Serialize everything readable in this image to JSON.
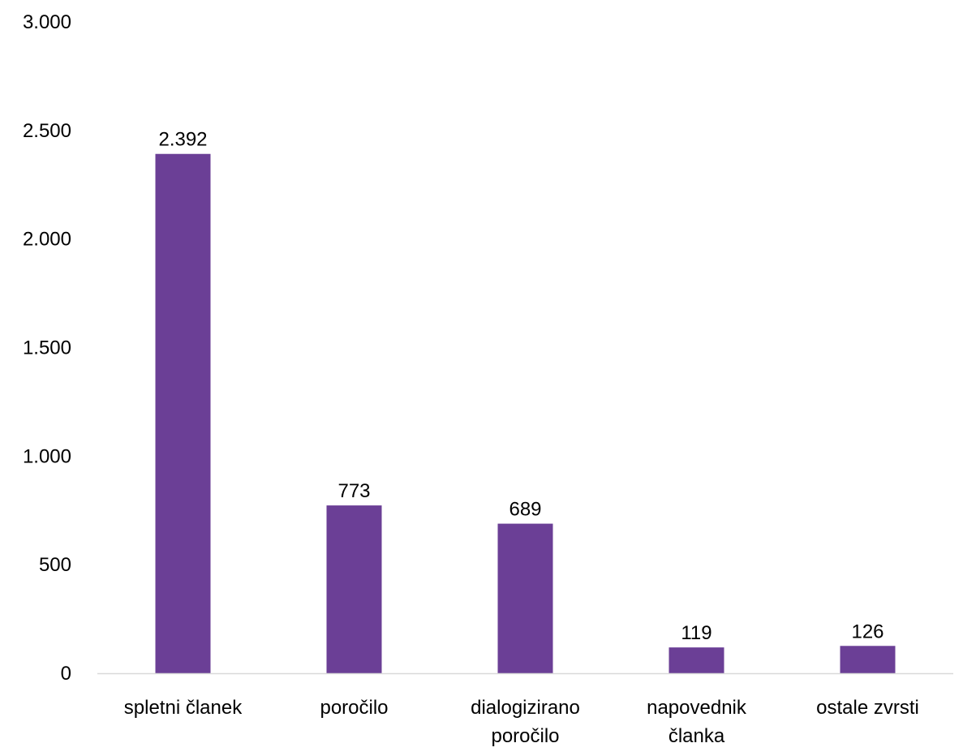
{
  "chart_data": {
    "type": "bar",
    "title": "",
    "xlabel": "",
    "ylabel": "",
    "categories": [
      [
        "spletni članek"
      ],
      [
        "poročilo"
      ],
      [
        "dialogizirano",
        "poročilo"
      ],
      [
        "napovednik",
        "članka"
      ],
      [
        "ostale zvrsti"
      ]
    ],
    "values": [
      2392,
      773,
      689,
      119,
      126
    ],
    "value_labels": [
      "2.392",
      "773",
      "689",
      "119",
      "126"
    ],
    "ylim": [
      0,
      3000
    ],
    "yticks": [
      0,
      500,
      1000,
      1500,
      2000,
      2500,
      3000
    ],
    "ytick_labels": [
      "0",
      "500",
      "1.000",
      "1.500",
      "2.000",
      "2.500",
      "3.000"
    ],
    "grid": false,
    "legend": "none",
    "colors": {
      "bar": "#6B3F96",
      "axis": "#D9D9D9",
      "text": "#000000"
    }
  }
}
